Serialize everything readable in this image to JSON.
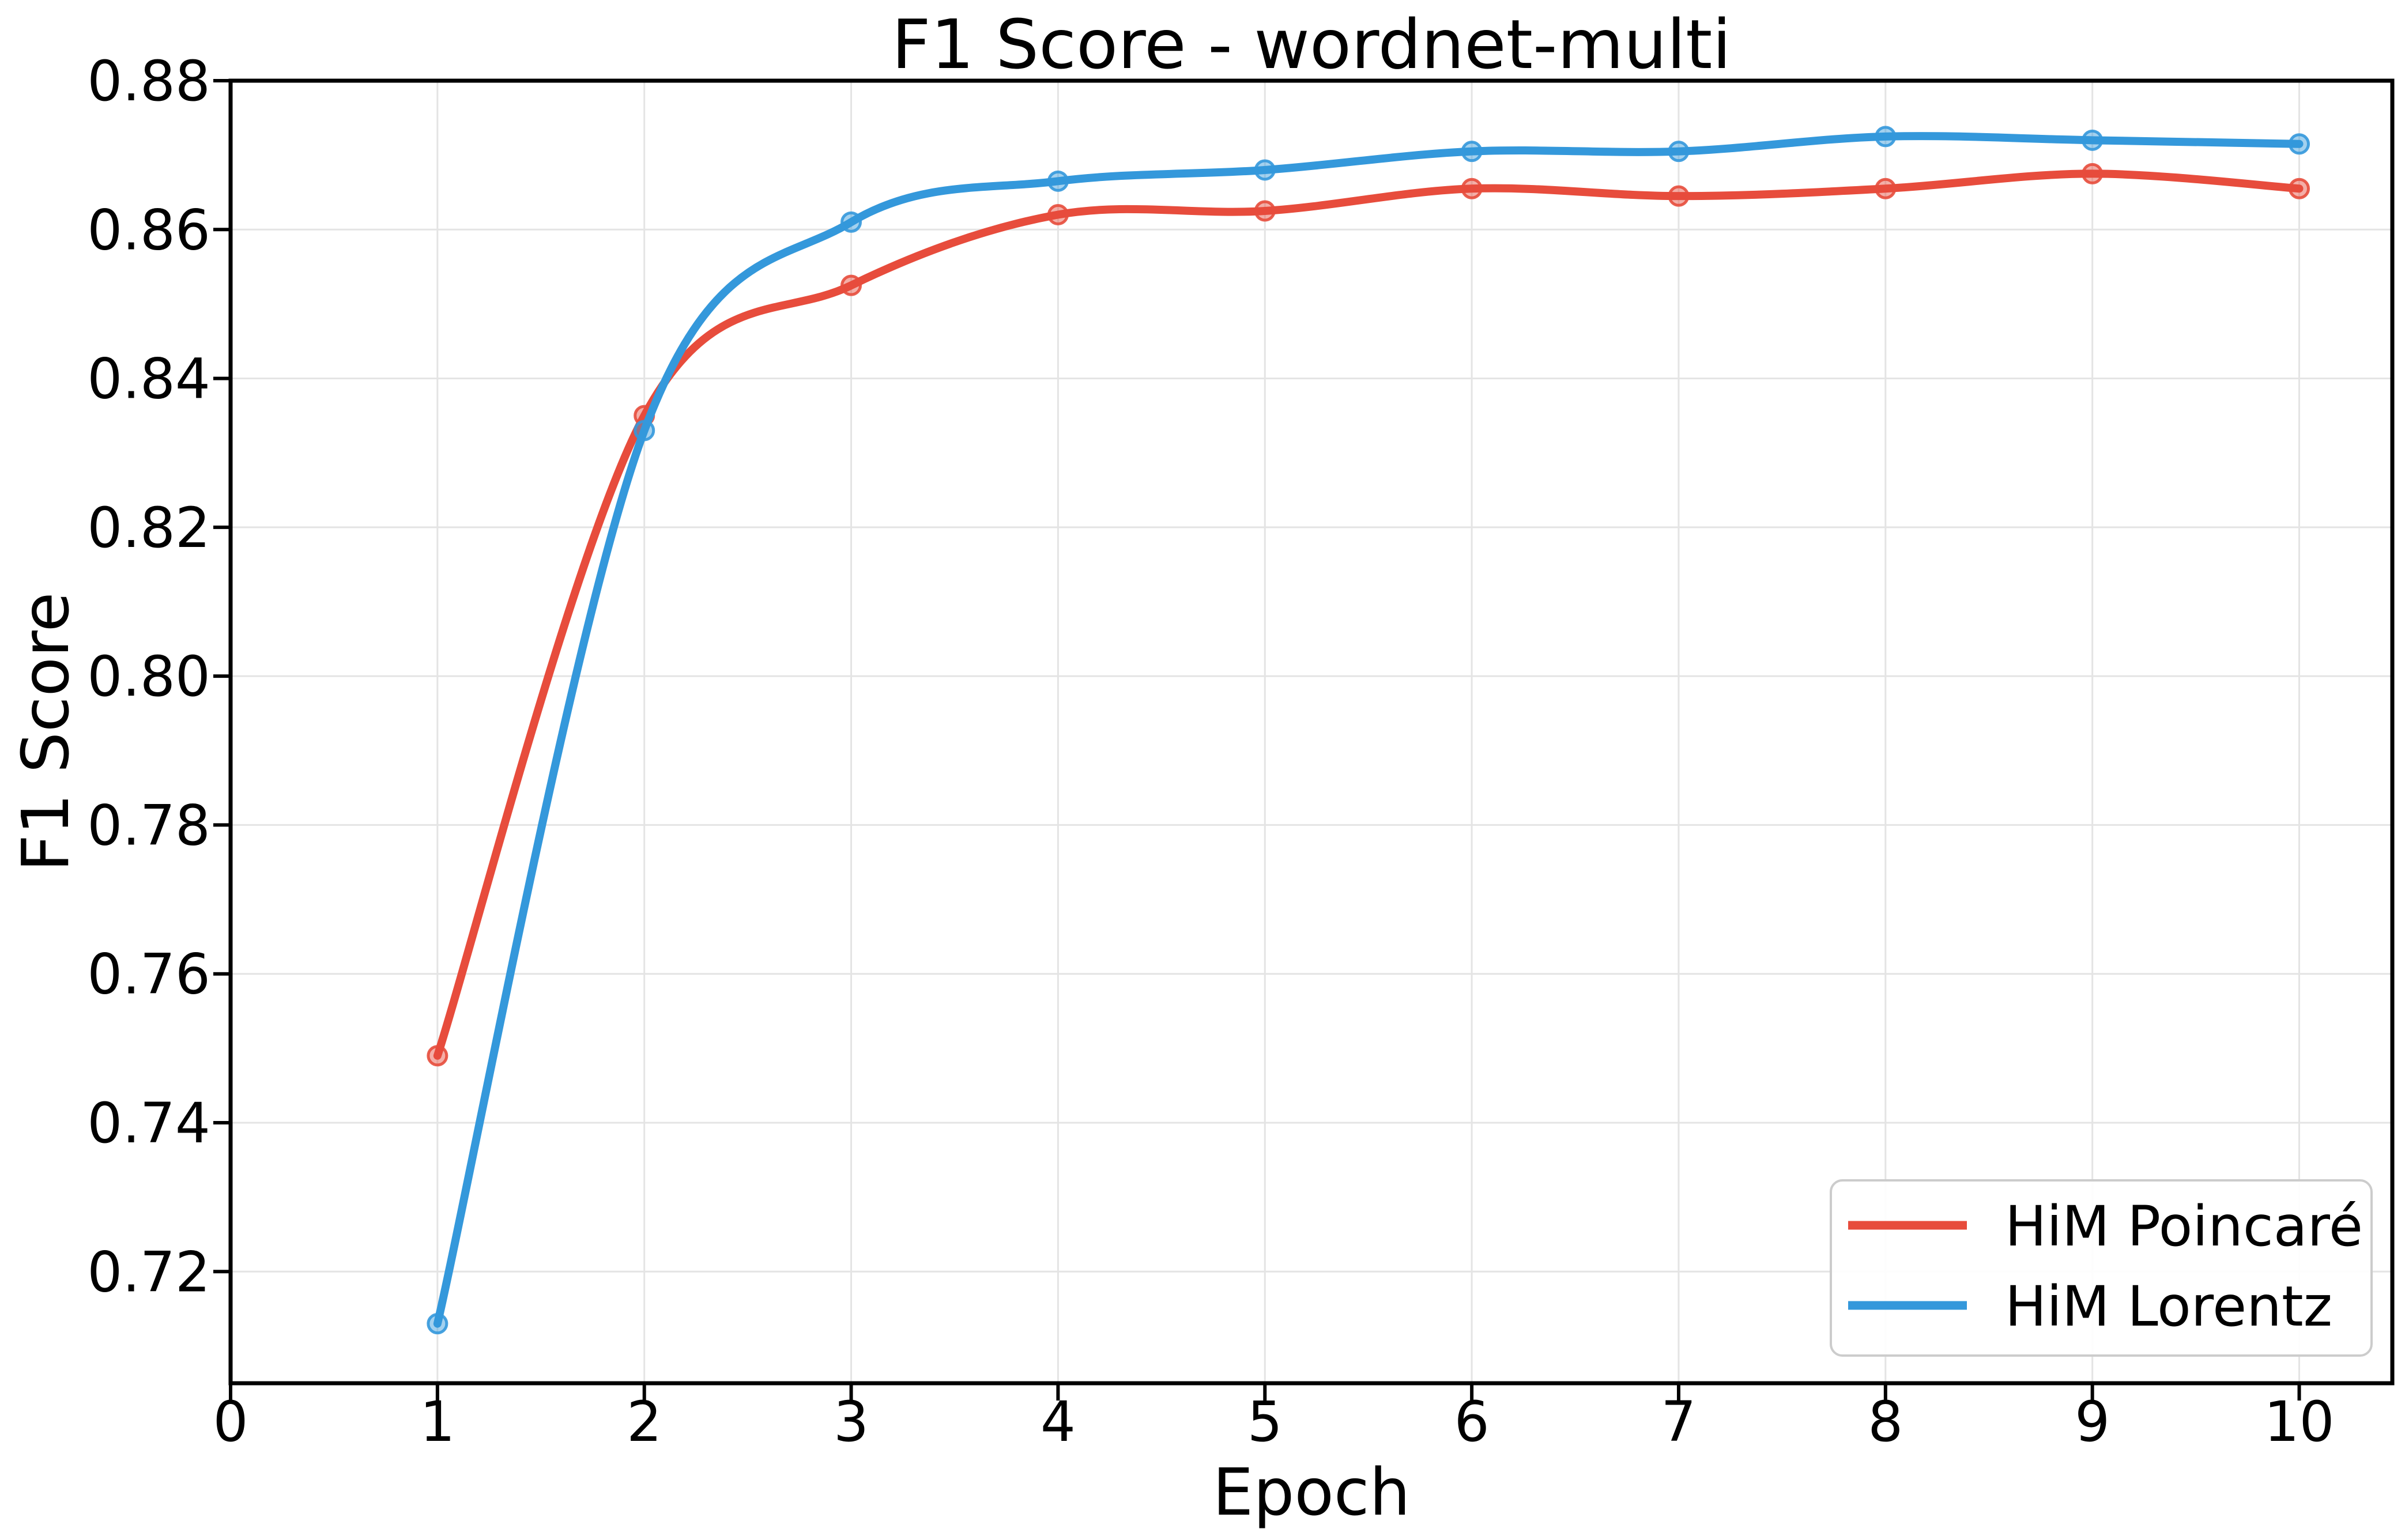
{
  "chart_data": {
    "type": "line",
    "title": "F1 Score - wordnet-multi",
    "xlabel": "Epoch",
    "ylabel": "F1 Score",
    "x": [
      1,
      2,
      3,
      4,
      5,
      6,
      7,
      8,
      9,
      10
    ],
    "series": [
      {
        "name": "HiM Poincaré",
        "color": "#e74c3c",
        "values": [
          0.749,
          0.835,
          0.8525,
          0.862,
          0.8625,
          0.8655,
          0.8645,
          0.8655,
          0.8675,
          0.8655
        ]
      },
      {
        "name": "HiM Lorentz",
        "color": "#3498db",
        "values": [
          0.713,
          0.833,
          0.861,
          0.8665,
          0.868,
          0.8705,
          0.8705,
          0.8725,
          0.872,
          0.8715
        ]
      }
    ],
    "xlim": [
      0,
      10.45
    ],
    "ylim": [
      0.705,
      0.88
    ],
    "xticks": [
      0,
      1,
      2,
      3,
      4,
      5,
      6,
      7,
      8,
      9,
      10
    ],
    "xtick_labels": [
      "0",
      "1",
      "2",
      "3",
      "4",
      "5",
      "6",
      "7",
      "8",
      "9",
      "10"
    ],
    "yticks": [
      0.72,
      0.74,
      0.76,
      0.78,
      0.8,
      0.82,
      0.84,
      0.86,
      0.88
    ],
    "ytick_labels": [
      "0.72",
      "0.74",
      "0.76",
      "0.78",
      "0.80",
      "0.82",
      "0.84",
      "0.86",
      "0.88"
    ],
    "grid": true,
    "legend_position": "lower right"
  },
  "colors": {
    "poincare": "#e74c3c",
    "lorentz": "#3498db",
    "grid": "#e4e4e4",
    "spine": "#000000",
    "text": "#000000",
    "legend_border": "#cccccc",
    "background": "#ffffff"
  }
}
